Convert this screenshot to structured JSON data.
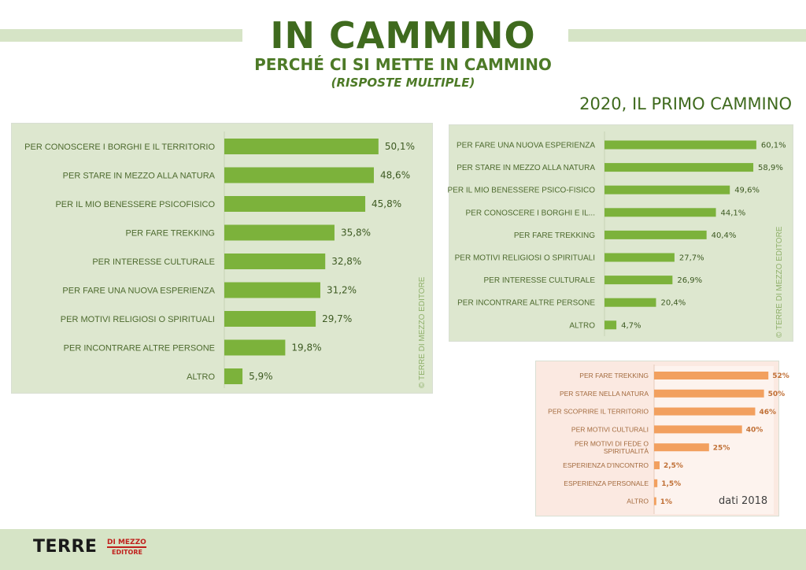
{
  "header": {
    "title": "IN CAMMINO",
    "subtitle": "PERCHÉ CI SI METTE IN CAMMINO",
    "note": "(RISPOSTE MULTIPLE)",
    "heading_2020": "2020, IL PRIMO CAMMINO"
  },
  "copyright": "© TERRE DI MEZZO EDITORE",
  "logo": {
    "main": "TERRE",
    "sub1": "DI MEZZO",
    "sub2": "EDITORE"
  },
  "colors": {
    "green_bar": "#7cb23b",
    "panel_green": "#dde7cf",
    "orange_bar": "#f2a05f",
    "panel_orange": "#fbe9e1",
    "title_green": "#3f6a1e",
    "logo_red": "#c0201c"
  },
  "chart_data": [
    {
      "type": "bar",
      "orientation": "horizontal",
      "categories": [
        "PER CONOSCERE I BORGHI E IL TERRITORIO",
        "PER STARE IN MEZZO ALLA NATURA",
        "PER IL MIO BENESSERE PSICOFISICO",
        "PER FARE TREKKING",
        "PER INTERESSE CULTURALE",
        "PER FARE UNA NUOVA ESPERIENZA",
        "PER MOTIVI RELIGIOSI O SPIRITUALI",
        "PER INCONTRARE ALTRE PERSONE",
        "ALTRO"
      ],
      "values": [
        50.1,
        48.6,
        45.8,
        35.8,
        32.8,
        31.2,
        29.7,
        19.8,
        5.9
      ],
      "value_labels": [
        "50,1%",
        "48,6%",
        "45,8%",
        "35,8%",
        "32,8%",
        "31,2%",
        "29,7%",
        "19,8%",
        "5,9%"
      ],
      "xlim": [
        0,
        55
      ]
    },
    {
      "type": "bar",
      "orientation": "horizontal",
      "categories": [
        "PER FARE UNA NUOVA ESPERIENZA",
        "PER STARE IN MEZZO ALLA NATURA",
        "PER IL MIO BENESSERE PSICO-FISICO",
        "PER CONOSCERE I BORGHI E IL...",
        "PER FARE TREKKING",
        "PER MOTIVI RELIGIOSI O SPIRITUALI",
        "PER INTERESSE CULTURALE",
        "PER INCONTRARE ALTRE PERSONE",
        "ALTRO"
      ],
      "values": [
        60.1,
        58.9,
        49.6,
        44.1,
        40.4,
        27.7,
        26.9,
        20.4,
        4.7
      ],
      "value_labels": [
        "60,1%",
        "58,9%",
        "49,6%",
        "44,1%",
        "40,4%",
        "27,7%",
        "26,9%",
        "20,4%",
        "4,7%"
      ],
      "xlim": [
        0,
        62
      ]
    },
    {
      "type": "bar",
      "orientation": "horizontal",
      "categories": [
        "PER FARE TREKKING",
        "PER STARE NELLA NATURA",
        "PER SCOPRIRE IL TERRITORIO",
        "PER MOTIVI CULTURALI",
        "PER MOTIVI DI FEDE O SPIRITUALITÀ",
        "ESPERIENZA D'INCONTRO",
        "ESPERIENZA PERSONALE",
        "ALTRO"
      ],
      "category_lines": [
        [
          "PER FARE TREKKING"
        ],
        [
          "PER STARE NELLA NATURA"
        ],
        [
          "PER SCOPRIRE IL TERRITORIO"
        ],
        [
          "PER MOTIVI CULTURALI"
        ],
        [
          "PER MOTIVI DI FEDE O",
          "SPIRITUALITÀ"
        ],
        [
          "ESPERIENZA D'INCONTRO"
        ],
        [
          "ESPERIENZA PERSONALE"
        ],
        [
          "ALTRO"
        ]
      ],
      "values": [
        52,
        50,
        46,
        40,
        25,
        2.5,
        1.5,
        1
      ],
      "value_labels": [
        "52%",
        "50%",
        "46%",
        "40%",
        "25%",
        "2,5%",
        "1,5%",
        "1%"
      ],
      "xlim": [
        0,
        53
      ],
      "footnote": "dati 2018"
    }
  ]
}
